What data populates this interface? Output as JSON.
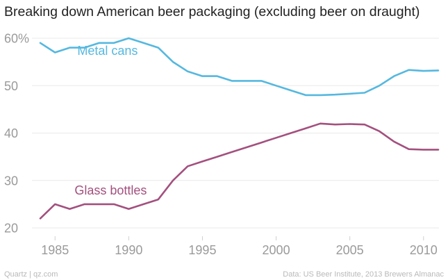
{
  "chart_data": {
    "type": "line",
    "title": "Breaking down American beer packaging (excluding beer on draught)",
    "xlabel": "",
    "ylabel": "",
    "xlim": [
      1983.8,
      2012
    ],
    "ylim": [
      20,
      60
    ],
    "x_ticks": [
      1985,
      1990,
      1995,
      2000,
      2005,
      2010
    ],
    "y_ticks": [
      {
        "value": 20,
        "label": "20"
      },
      {
        "value": 30,
        "label": "30"
      },
      {
        "value": 40,
        "label": "40"
      },
      {
        "value": 50,
        "label": "50"
      },
      {
        "value": 60,
        "label": "60%"
      }
    ],
    "grid": true,
    "series": [
      {
        "name": "Metal cans",
        "color": "#55b8df",
        "x": [
          1984,
          1985,
          1986,
          1987,
          1988,
          1989,
          1990,
          1991,
          1992,
          1993,
          1994,
          1995,
          1996,
          1997,
          1998,
          1999,
          2000,
          2001,
          2002,
          2003,
          2004,
          2005,
          2006,
          2007,
          2008,
          2009,
          2010,
          2011
        ],
        "values": [
          59,
          57,
          58,
          58,
          59,
          59,
          60,
          59,
          58,
          55,
          53,
          52,
          52,
          51,
          51,
          51,
          50,
          49,
          48,
          48,
          48.1,
          48.3,
          48.5,
          50,
          52,
          53.3,
          53.1,
          53.2
        ]
      },
      {
        "name": "Glass bottles",
        "color": "#a3507e",
        "x": [
          1984,
          1985,
          1986,
          1987,
          1988,
          1989,
          1990,
          1991,
          1992,
          1993,
          1994,
          1995,
          1996,
          1997,
          1998,
          1999,
          2000,
          2001,
          2002,
          2003,
          2004,
          2005,
          2006,
          2007,
          2008,
          2009,
          2010,
          2011
        ],
        "values": [
          22,
          25,
          24,
          25,
          25,
          25,
          24,
          25,
          26,
          30,
          33,
          34,
          35,
          36,
          37,
          38,
          39,
          40,
          41,
          42,
          41.8,
          41.9,
          41.8,
          40.4,
          38.2,
          36.6,
          36.5,
          36.5
        ]
      }
    ]
  },
  "footer": {
    "source_left": "Quartz | qz.com",
    "source_right": "Data: US Beer Institute, 2013 Brewers Almanac"
  }
}
